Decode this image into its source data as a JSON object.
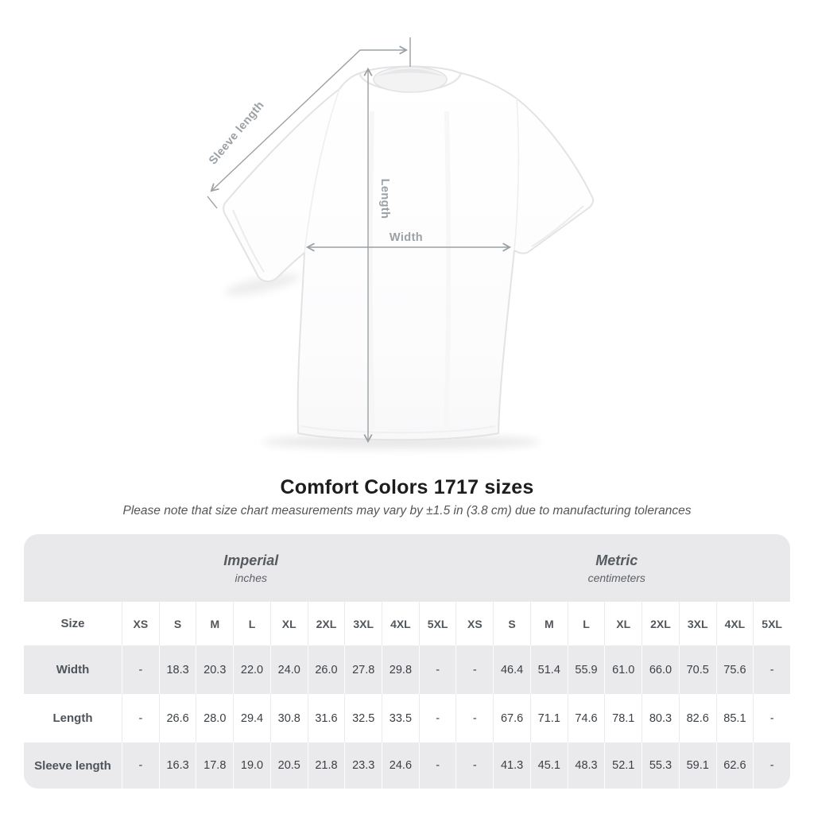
{
  "figure": {
    "annotations": {
      "sleeve_length": "Sleeve length",
      "length": "Length",
      "width": "Width"
    }
  },
  "heading": {
    "title": "Comfort Colors 1717 sizes",
    "note": "Please note that size chart measurements may vary by ±1.5 in (3.8 cm) due to manufacturing tolerances"
  },
  "table": {
    "corner_label": "Size",
    "unit_groups": [
      {
        "title": "Imperial",
        "subtitle": "inches"
      },
      {
        "title": "Metric",
        "subtitle": "centimeters"
      }
    ],
    "sizes": [
      "XS",
      "S",
      "M",
      "L",
      "XL",
      "2XL",
      "3XL",
      "4XL",
      "5XL"
    ],
    "rows": [
      {
        "label": "Width",
        "imperial": [
          "-",
          "18.3",
          "20.3",
          "22.0",
          "24.0",
          "26.0",
          "27.8",
          "29.8",
          "-"
        ],
        "metric": [
          "-",
          "46.4",
          "51.4",
          "55.9",
          "61.0",
          "66.0",
          "70.5",
          "75.6",
          "-"
        ]
      },
      {
        "label": "Length",
        "imperial": [
          "-",
          "26.6",
          "28.0",
          "29.4",
          "30.8",
          "31.6",
          "32.5",
          "33.5",
          "-"
        ],
        "metric": [
          "-",
          "67.6",
          "71.1",
          "74.6",
          "78.1",
          "80.3",
          "82.6",
          "85.1",
          "-"
        ]
      },
      {
        "label": "Sleeve length",
        "imperial": [
          "-",
          "16.3",
          "17.8",
          "19.0",
          "20.5",
          "21.8",
          "23.3",
          "24.6",
          "-"
        ],
        "metric": [
          "-",
          "41.3",
          "45.1",
          "48.3",
          "52.1",
          "55.3",
          "59.1",
          "62.6",
          "-"
        ]
      }
    ]
  },
  "colors": {
    "annotation_gray": "#9aa0a4",
    "band_bg": "#e9e9eb",
    "row_alt_bg": "#eaeaec",
    "header_text": "#51565c",
    "value_text": "#3c4044"
  }
}
